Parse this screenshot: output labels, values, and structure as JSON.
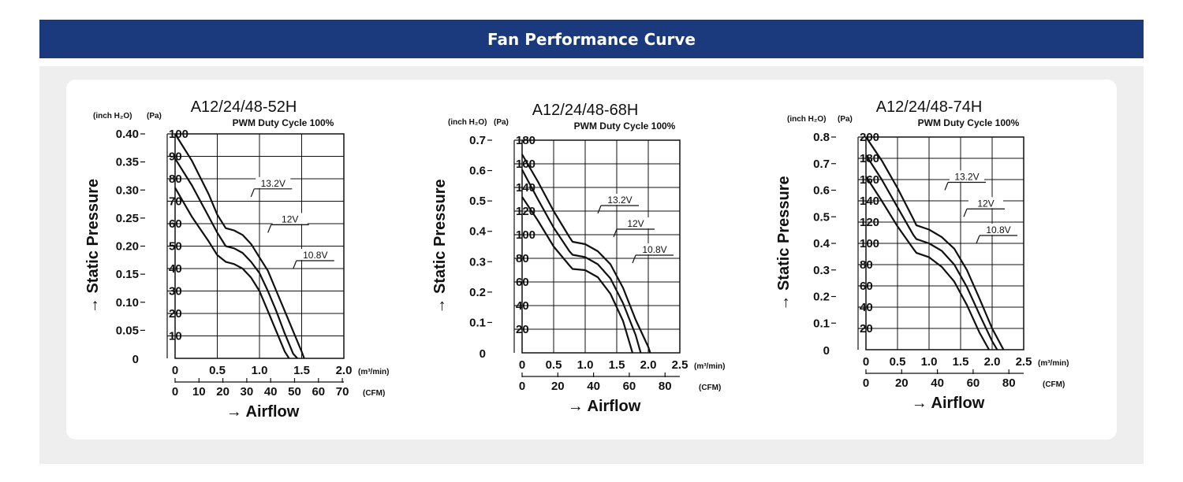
{
  "header": {
    "title": "Fan Performance Curve"
  },
  "colors": {
    "banner": "#1b3a7e",
    "panel": "#eeeeee",
    "card": "#ffffff",
    "line": "#111111"
  },
  "chart_data": [
    {
      "type": "line",
      "title": "A12/24/48-52H",
      "subtitle": "PWM Duty Cycle 100%",
      "xlabel": "→ Airflow",
      "ylabel": "→ Static Pressure",
      "unit_inch": "(inch H₂O)",
      "unit_pa": "(Pa)",
      "unit_m3": "(m³/min)",
      "unit_cfm": "(CFM)",
      "xlim": [
        0,
        2.0
      ],
      "ylim": [
        0,
        100
      ],
      "x_ticks": [
        "0",
        "0.5",
        "1.0",
        "1.5",
        "2.0"
      ],
      "y_ticks": [
        "10",
        "20",
        "30",
        "40",
        "50",
        "60",
        "70",
        "80",
        "90",
        "100"
      ],
      "inch_ticks": [
        "0.05",
        "0.10",
        "0.15",
        "0.20",
        "0.25",
        "0.30",
        "0.35",
        "0.40"
      ],
      "inch_zero": "0",
      "cfm_ticks": [
        "0",
        "10",
        "20",
        "30",
        "40",
        "50",
        "60",
        "70"
      ],
      "grid": true,
      "series": [
        {
          "name": "13.2V",
          "x": [
            0,
            0.2,
            0.4,
            0.5,
            0.6,
            0.7,
            0.8,
            0.9,
            1.0,
            1.1,
            1.2,
            1.3,
            1.4,
            1.5,
            1.53
          ],
          "y": [
            100,
            88,
            73,
            64,
            58,
            57,
            55,
            51,
            45,
            39,
            30,
            21,
            12,
            3,
            0
          ]
        },
        {
          "name": "12V",
          "x": [
            0,
            0.2,
            0.4,
            0.5,
            0.6,
            0.7,
            0.8,
            0.9,
            1.0,
            1.1,
            1.2,
            1.3,
            1.4,
            1.45
          ],
          "y": [
            89,
            77,
            63,
            56,
            50,
            49,
            47,
            43,
            38,
            30,
            21,
            11,
            2,
            0
          ]
        },
        {
          "name": "10.8V",
          "x": [
            0,
            0.2,
            0.4,
            0.5,
            0.6,
            0.7,
            0.8,
            0.9,
            1.0,
            1.1,
            1.2,
            1.3,
            1.35
          ],
          "y": [
            76,
            63,
            52,
            46,
            43,
            42,
            40,
            36,
            30,
            21,
            12,
            3,
            0
          ]
        }
      ]
    },
    {
      "type": "line",
      "title": "A12/24/48-68H",
      "subtitle": "PWM Duty Cycle 100%",
      "xlabel": "→ Airflow",
      "ylabel": "→ Static Pressure",
      "unit_inch": "(inch H₂O)",
      "unit_pa": "(Pa)",
      "unit_m3": "(m³/min)",
      "unit_cfm": "(CFM)",
      "xlim": [
        0,
        2.5
      ],
      "ylim": [
        0,
        180
      ],
      "x_ticks": [
        "0",
        "0.5",
        "1.0",
        "1.5",
        "2.0",
        "2.5"
      ],
      "y_ticks": [
        "20",
        "40",
        "60",
        "80",
        "100",
        "120",
        "140",
        "160",
        "180"
      ],
      "inch_ticks": [
        "0.1",
        "0.2",
        "0.3",
        "0.4",
        "0.5",
        "0.6",
        "0.7"
      ],
      "inch_zero": "0",
      "cfm_ticks": [
        "0",
        "20",
        "40",
        "60",
        "80"
      ],
      "grid": true,
      "series": [
        {
          "name": "13.2V",
          "x": [
            0,
            0.25,
            0.5,
            0.75,
            0.8,
            1.0,
            1.2,
            1.4,
            1.6,
            1.8,
            2.0,
            2.03
          ],
          "y": [
            168,
            145,
            120,
            98,
            94,
            92,
            86,
            75,
            55,
            28,
            5,
            0
          ]
        },
        {
          "name": "12V",
          "x": [
            0,
            0.25,
            0.5,
            0.75,
            0.8,
            1.0,
            1.2,
            1.4,
            1.6,
            1.8,
            1.88
          ],
          "y": [
            155,
            130,
            106,
            86,
            83,
            81,
            75,
            63,
            42,
            15,
            0
          ]
        },
        {
          "name": "10.8V",
          "x": [
            0,
            0.25,
            0.5,
            0.75,
            0.8,
            1.0,
            1.2,
            1.4,
            1.6,
            1.75
          ],
          "y": [
            132,
            112,
            90,
            74,
            71,
            70,
            64,
            50,
            27,
            0
          ]
        }
      ]
    },
    {
      "type": "line",
      "title": "A12/24/48-74H",
      "subtitle": "PWM Duty Cycle 100%",
      "xlabel": "→ Airflow",
      "ylabel": "→ Static Pressure",
      "unit_inch": "(inch H₂O)",
      "unit_pa": "(Pa)",
      "unit_m3": "(m³/min)",
      "unit_cfm": "(CFM)",
      "xlim": [
        0,
        2.5
      ],
      "ylim": [
        0,
        200
      ],
      "x_ticks": [
        "0",
        "0.5",
        "1.0",
        "1.5",
        "2.0",
        "2.5"
      ],
      "y_ticks": [
        "20",
        "40",
        "60",
        "80",
        "100",
        "120",
        "140",
        "160",
        "180",
        "200"
      ],
      "inch_ticks": [
        "0.1",
        "0.2",
        "0.3",
        "0.4",
        "0.5",
        "0.6",
        "0.7",
        "0.8"
      ],
      "inch_zero": "0",
      "cfm_ticks": [
        "0",
        "20",
        "40",
        "60",
        "80"
      ],
      "grid": true,
      "series": [
        {
          "name": "13.2V",
          "x": [
            0,
            0.25,
            0.5,
            0.75,
            0.8,
            1.0,
            1.2,
            1.4,
            1.6,
            1.8,
            2.0,
            2.18
          ],
          "y": [
            200,
            178,
            152,
            123,
            117,
            113,
            106,
            95,
            75,
            48,
            20,
            0
          ]
        },
        {
          "name": "12V",
          "x": [
            0,
            0.25,
            0.5,
            0.75,
            0.8,
            1.0,
            1.2,
            1.4,
            1.6,
            1.8,
            2.0,
            2.08
          ],
          "y": [
            183,
            160,
            134,
            108,
            104,
            100,
            93,
            80,
            59,
            33,
            8,
            0
          ]
        },
        {
          "name": "10.8V",
          "x": [
            0,
            0.25,
            0.5,
            0.75,
            0.8,
            1.0,
            1.2,
            1.4,
            1.6,
            1.8,
            1.95
          ],
          "y": [
            163,
            140,
            116,
            95,
            91,
            87,
            78,
            64,
            42,
            16,
            0
          ]
        }
      ]
    }
  ]
}
